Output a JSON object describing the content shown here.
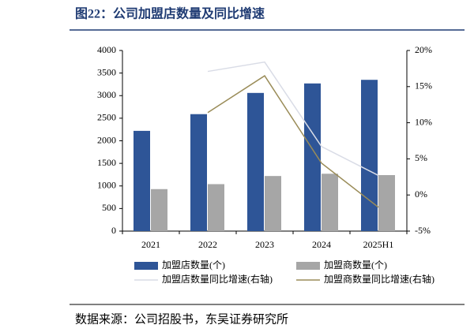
{
  "title": "图22：公司加盟店数量及同比增速",
  "source": "数据来源：公司招股书，东吴证券研究所",
  "chart_data": {
    "type": "bar",
    "categories": [
      "2021",
      "2022",
      "2023",
      "2024",
      "2025H1"
    ],
    "series": [
      {
        "name": "加盟店数量(个)",
        "type": "bar",
        "color": "#2e5597",
        "values": [
          2220,
          2590,
          3060,
          3270,
          3350
        ]
      },
      {
        "name": "加盟商数量(个)",
        "type": "bar",
        "color": "#a6a6a6",
        "values": [
          930,
          1040,
          1220,
          1270,
          1240
        ]
      },
      {
        "name": "加盟店数量同比增速(右轴)",
        "type": "line",
        "axis": "y2",
        "color": "#d9dce6",
        "values": [
          null,
          17.1,
          18.4,
          6.7,
          2.7
        ]
      },
      {
        "name": "加盟商数量同比增速(右轴)",
        "type": "line",
        "axis": "y2",
        "color": "#9a8c58",
        "values": [
          null,
          11.4,
          16.5,
          4.4,
          -1.7
        ]
      }
    ],
    "ylim": [
      0,
      4000
    ],
    "yticks": [
      0,
      500,
      1000,
      1500,
      2000,
      2500,
      3000,
      3500,
      4000
    ],
    "y2lim": [
      -5,
      20
    ],
    "y2ticks": [
      {
        "value": -5,
        "label": "-5%"
      },
      {
        "value": 0,
        "label": "0%"
      },
      {
        "value": 5,
        "label": "5%"
      },
      {
        "value": 10,
        "label": "10%"
      },
      {
        "value": 15,
        "label": "15%"
      },
      {
        "value": 20,
        "label": "20%"
      }
    ],
    "grid": false
  }
}
